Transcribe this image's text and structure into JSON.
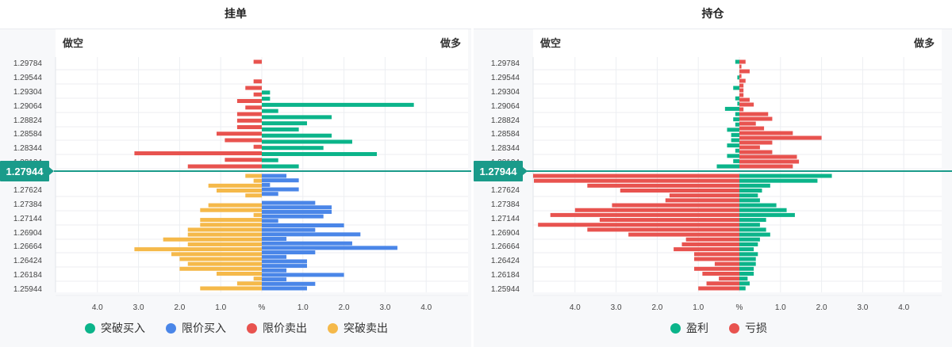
{
  "colors": {
    "green": "#0bb48a",
    "blue": "#4a86e8",
    "red": "#e8534f",
    "orange": "#f5b94a",
    "accent": "#1a9b8a"
  },
  "left_panel": {
    "title": "挂单",
    "short_label": "做空",
    "long_label": "做多",
    "current_price": "1.27944",
    "legend": [
      {
        "label": "突破买入",
        "color": "#0bb48a"
      },
      {
        "label": "限价买入",
        "color": "#4a86e8"
      },
      {
        "label": "限价卖出",
        "color": "#e8534f"
      },
      {
        "label": "突破卖出",
        "color": "#f5b94a"
      }
    ]
  },
  "right_panel": {
    "title": "持仓",
    "short_label": "做空",
    "long_label": "做多",
    "current_price": "1.27944",
    "legend": [
      {
        "label": "盈利",
        "color": "#0bb48a"
      },
      {
        "label": "亏损",
        "color": "#e8534f"
      }
    ]
  },
  "chart_data": [
    {
      "type": "bar",
      "title": "挂单",
      "orientation": "horizontal-diverging",
      "price_ticks": [
        "1.29784",
        "1.29544",
        "1.29304",
        "1.29064",
        "1.28824",
        "1.28584",
        "1.28344",
        "1.28104",
        "1.27624",
        "1.27384",
        "1.27144",
        "1.26904",
        "1.26664",
        "1.26424",
        "1.26184",
        "1.25944"
      ],
      "x_ticks": [
        "4.0",
        "3.0",
        "2.0",
        "1.0",
        "%",
        "1.0",
        "2.0",
        "3.0",
        "4.0"
      ],
      "xlim": [
        -4.8,
        4.8
      ],
      "current_price": "1.27944",
      "upper_rows": {
        "limit_sell": [
          0.2,
          0,
          0,
          0.2,
          0.4,
          0.2,
          0.6,
          0.4,
          0.6,
          0.6,
          0.6,
          1.1,
          0.9,
          0.2,
          3.1,
          0.9,
          1.8
        ],
        "breakout_buy": [
          0,
          0,
          0,
          0,
          0,
          0.2,
          0.2,
          3.7,
          0.4,
          1.7,
          1.1,
          0.9,
          1.7,
          2.2,
          1.5,
          2.8,
          0.4,
          0.9
        ]
      },
      "lower_rows": {
        "breakout_sell": [
          0.4,
          0.2,
          1.3,
          1.1,
          0.4,
          0,
          1.3,
          1.5,
          0.2,
          1.5,
          1.5,
          1.8,
          1.8,
          2.4,
          1.8,
          3.1,
          2.2,
          2.0,
          1.8,
          2.0,
          1.1,
          0.2,
          0.6,
          1.5
        ],
        "limit_buy": [
          0.6,
          0.9,
          0.2,
          0.9,
          0.4,
          0,
          1.3,
          1.7,
          1.7,
          1.5,
          0.4,
          2.0,
          1.3,
          2.4,
          0.6,
          2.2,
          3.3,
          1.3,
          0.6,
          1.1,
          1.1,
          0.6,
          2.0,
          0.6,
          1.3,
          1.1
        ]
      }
    },
    {
      "type": "bar",
      "title": "持仓",
      "orientation": "horizontal-diverging",
      "price_ticks": [
        "1.29784",
        "1.29544",
        "1.29304",
        "1.29064",
        "1.28824",
        "1.28584",
        "1.28344",
        "1.28104",
        "1.27624",
        "1.27384",
        "1.27144",
        "1.26904",
        "1.26664",
        "1.26424",
        "1.26184",
        "1.25944"
      ],
      "x_ticks": [
        "4.0",
        "3.0",
        "2.0",
        "1.0",
        "%",
        "1.0",
        "2.0",
        "3.0",
        "4.0"
      ],
      "xlim": [
        -4.8,
        4.8
      ],
      "current_price": "1.27944",
      "upper_rows": {
        "profit_left": [
          0.1,
          0,
          0,
          0.05,
          0,
          0.15,
          0,
          0.1,
          0.05,
          0.35,
          0.1,
          0.15,
          0.1,
          0.3,
          0.2,
          0.2,
          0.3,
          0.1,
          0.3,
          0.15,
          0.55
        ],
        "loss_right": [
          0.15,
          0.05,
          0.25,
          0.05,
          0.15,
          0.1,
          0.1,
          0.1,
          0.25,
          0.35,
          0.1,
          0.7,
          0.8,
          0.4,
          0.6,
          1.3,
          2.0,
          0.8,
          0.5,
          0.8,
          1.4,
          1.45,
          1.3
        ]
      },
      "lower_rows": {
        "loss_left": [
          6.0,
          5.0,
          3.7,
          2.9,
          1.7,
          1.8,
          3.1,
          4.0,
          4.6,
          3.4,
          4.9,
          3.7,
          2.7,
          1.3,
          1.4,
          1.6,
          1.1,
          1.1,
          0.6,
          1.1,
          0.9,
          0.5,
          0.8,
          1.0
        ],
        "profit_right": [
          2.25,
          1.9,
          0.75,
          0.55,
          0.45,
          0.5,
          0.9,
          1.15,
          1.35,
          0.65,
          0.5,
          0.65,
          0.75,
          0.5,
          0.45,
          0.35,
          0.45,
          0.4,
          0.4,
          0.35,
          0.35,
          0.2,
          0.25,
          0.15
        ]
      }
    }
  ]
}
